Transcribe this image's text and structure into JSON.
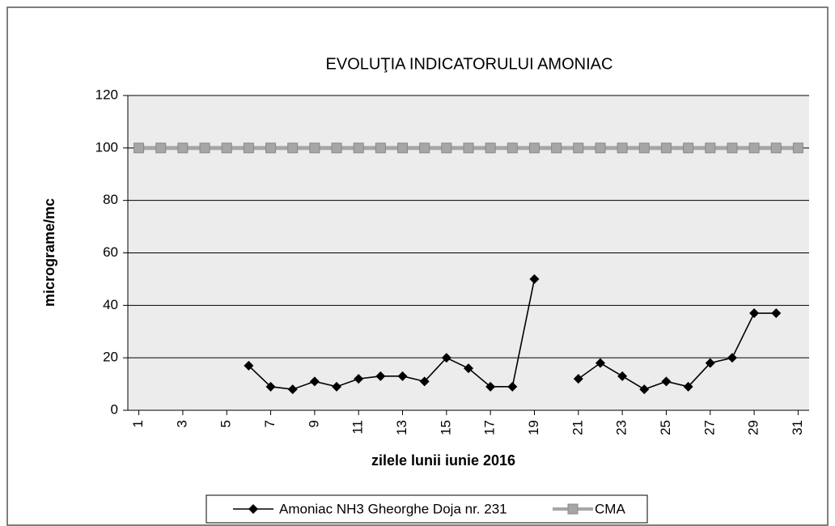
{
  "chart_data": {
    "type": "line",
    "title": "EVOLUŢIA INDICATORULUI AMONIAC",
    "xlabel": "zilele lunii iunie 2016",
    "ylabel": "micrograme/mc",
    "x": [
      1,
      2,
      3,
      4,
      5,
      6,
      7,
      8,
      9,
      10,
      11,
      12,
      13,
      14,
      15,
      16,
      17,
      18,
      19,
      20,
      21,
      22,
      23,
      24,
      25,
      26,
      27,
      28,
      29,
      30,
      31
    ],
    "series": [
      {
        "name": "Amoniac NH3 Gheorghe Doja nr. 231",
        "color": "#000000",
        "marker": "diamond",
        "values": [
          null,
          null,
          null,
          null,
          null,
          17,
          9,
          8,
          11,
          9,
          12,
          13,
          13,
          11,
          20,
          16,
          9,
          9,
          50,
          null,
          12,
          18,
          13,
          8,
          11,
          9,
          18,
          20,
          37,
          37,
          null
        ]
      },
      {
        "name": "CMA",
        "color": "#a6a6a6",
        "marker": "square",
        "values": [
          100,
          100,
          100,
          100,
          100,
          100,
          100,
          100,
          100,
          100,
          100,
          100,
          100,
          100,
          100,
          100,
          100,
          100,
          100,
          100,
          100,
          100,
          100,
          100,
          100,
          100,
          100,
          100,
          100,
          100,
          100
        ]
      }
    ],
    "xlim": [
      0.5,
      31.5
    ],
    "xticks": [
      1,
      3,
      5,
      7,
      9,
      11,
      13,
      15,
      17,
      19,
      21,
      23,
      25,
      27,
      29,
      31
    ],
    "ylim": [
      0,
      120
    ],
    "yticks": [
      0,
      20,
      40,
      60,
      80,
      100,
      120
    ],
    "grid": true,
    "legend": "bottom"
  }
}
